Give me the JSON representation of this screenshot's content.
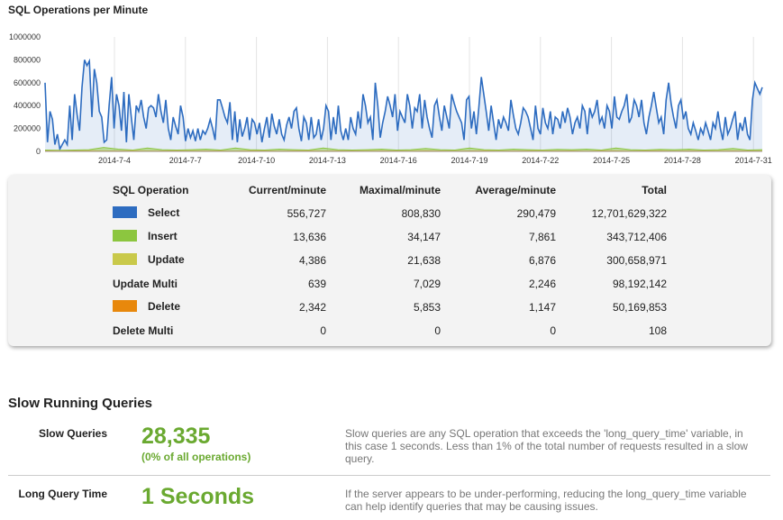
{
  "chart_section": {
    "title": "SQL Operations per Minute"
  },
  "chart_data": {
    "type": "area",
    "title": "SQL Operations per Minute",
    "xlabel": "",
    "ylabel": "",
    "ylim": [
      0,
      1000000
    ],
    "y_ticks": [
      "0",
      "200000",
      "400000",
      "600000",
      "800000",
      "1000000"
    ],
    "x_tick_labels": [
      "2014-7-4",
      "2014-7-7",
      "2014-7-10",
      "2014-7-13",
      "2014-7-16",
      "2014-7-19",
      "2014-7-22",
      "2014-7-25",
      "2014-7-28",
      "2014-7-31"
    ],
    "grid": "vertical",
    "series": [
      {
        "name": "Select",
        "color": "#2d6cc0",
        "values": [
          600000,
          80000,
          350000,
          280000,
          60000,
          150000,
          20000,
          60000,
          100000,
          60000,
          400000,
          100000,
          500000,
          320000,
          180000,
          560000,
          800000,
          750000,
          790000,
          300000,
          720000,
          600000,
          350000,
          300000,
          80000,
          100000,
          400000,
          650000,
          200000,
          500000,
          400000,
          180000,
          520000,
          80000,
          500000,
          300000,
          100000,
          400000,
          350000,
          450000,
          300000,
          200000,
          380000,
          400000,
          380000,
          300000,
          500000,
          350000,
          250000,
          450000,
          200000,
          100000,
          300000,
          220000,
          150000,
          400000,
          300000,
          90000,
          200000,
          120000,
          180000,
          90000,
          200000,
          100000,
          180000,
          150000,
          200000,
          280000,
          200000,
          100000,
          450000,
          450000,
          380000,
          300000,
          250000,
          430000,
          100000,
          350000,
          80000,
          280000,
          130000,
          200000,
          300000,
          100000,
          280000,
          250000,
          150000,
          250000,
          80000,
          200000,
          300000,
          120000,
          330000,
          220000,
          150000,
          280000,
          150000,
          100000,
          230000,
          300000,
          200000,
          350000,
          380000,
          200000,
          90000,
          300000,
          250000,
          100000,
          300000,
          120000,
          150000,
          280000,
          100000,
          200000,
          400000,
          350000,
          100000,
          300000,
          150000,
          400000,
          180000,
          100000,
          200000,
          100000,
          300000,
          200000,
          150000,
          350000,
          200000,
          500000,
          400000,
          250000,
          300000,
          100000,
          600000,
          400000,
          120000,
          250000,
          350000,
          480000,
          400000,
          300000,
          500000,
          180000,
          350000,
          300000,
          250000,
          500000,
          400000,
          200000,
          380000,
          350000,
          500000,
          200000,
          450000,
          300000,
          200000,
          120000,
          400000,
          450000,
          300000,
          180000,
          400000,
          300000,
          200000,
          500000,
          420000,
          350000,
          300000,
          250000,
          100000,
          450000,
          480000,
          200000,
          350000,
          150000,
          380000,
          650000,
          500000,
          350000,
          180000,
          400000,
          250000,
          100000,
          280000,
          200000,
          300000,
          250000,
          180000,
          450000,
          320000,
          200000,
          150000,
          250000,
          380000,
          350000,
          300000,
          200000,
          100000,
          400000,
          200000,
          150000,
          380000,
          250000,
          200000,
          350000,
          150000,
          300000,
          280000,
          200000,
          350000,
          250000,
          380000,
          300000,
          150000,
          250000,
          300000,
          200000,
          400000,
          350000,
          150000,
          380000,
          300000,
          350000,
          450000,
          250000,
          300000,
          200000,
          400000,
          350000,
          200000,
          480000,
          300000,
          280000,
          350000,
          400000,
          500000,
          250000,
          300000,
          450000,
          400000,
          300000,
          450000,
          250000,
          150000,
          300000,
          400000,
          520000,
          380000,
          250000,
          300000,
          150000,
          450000,
          600000,
          420000,
          300000,
          200000,
          400000,
          450000,
          280000,
          350000,
          200000,
          150000,
          250000,
          180000,
          100000,
          200000,
          150000,
          250000,
          180000,
          100000,
          250000,
          200000,
          350000,
          200000,
          100000,
          300000,
          150000,
          200000,
          280000,
          350000,
          100000,
          250000,
          180000,
          300000,
          150000,
          100000,
          450000,
          600000,
          550000,
          500000,
          560000
        ]
      },
      {
        "name": "Insert",
        "color": "#8cc63f",
        "values": [
          12000,
          10000,
          12000,
          15000,
          35000,
          20000,
          12000,
          30000,
          15000,
          12000,
          15000,
          20000,
          12000,
          30000,
          15000,
          12000,
          20000,
          15000,
          12000,
          30000,
          15000,
          12000,
          15000,
          20000,
          12000,
          15000,
          25000,
          15000,
          12000,
          30000,
          15000,
          12000,
          20000,
          15000,
          12000,
          18000,
          15000,
          20000,
          12000,
          30000,
          15000,
          12000,
          18000,
          15000,
          20000,
          12000,
          15000,
          25000,
          12000,
          15000
        ]
      },
      {
        "name": "Update",
        "color": "#c9c94a",
        "values": [
          4000,
          5000,
          4000,
          6000,
          5000,
          4000,
          6000,
          5000,
          4000,
          5000,
          6000,
          4000,
          5000,
          4000,
          6000,
          5000,
          4000,
          5000,
          6000,
          4000,
          5000,
          4000,
          6000,
          5000,
          4000,
          5000,
          6000,
          4000,
          5000,
          4000,
          6000,
          5000,
          4000,
          5000,
          6000,
          4000,
          5000,
          4000,
          6000,
          5000,
          4000,
          5000,
          6000,
          4000,
          5000,
          4000,
          6000,
          5000,
          4000,
          5000
        ]
      },
      {
        "name": "Delete",
        "color": "#e8880c",
        "values": [
          2000,
          1000,
          2000,
          1500,
          1000,
          2000,
          1500,
          1000,
          2000,
          1500,
          1000,
          2000,
          1500,
          1000,
          2000,
          1500,
          1000,
          2000,
          1500,
          1000,
          2000,
          1500,
          1000,
          2000,
          1500,
          1000,
          2000,
          1500,
          1000,
          2000,
          1500,
          1000,
          2000,
          1500,
          1000,
          2000,
          1500,
          1000,
          2000,
          1500,
          1000,
          2000,
          1500,
          1000,
          2000,
          1500,
          1000,
          2000,
          1500,
          1000
        ]
      }
    ]
  },
  "ops_table": {
    "headers": {
      "name": "SQL Operation",
      "current": "Current/minute",
      "maximal": "Maximal/minute",
      "average": "Average/minute",
      "total": "Total"
    },
    "rows": [
      {
        "name": "Select",
        "color": "#2d6cc0",
        "current": "556,727",
        "maximal": "808,830",
        "average": "290,479",
        "total": "12,701,629,322"
      },
      {
        "name": "Insert",
        "color": "#8cc63f",
        "current": "13,636",
        "maximal": "34,147",
        "average": "7,861",
        "total": "343,712,406"
      },
      {
        "name": "Update",
        "color": "#c9c94a",
        "current": "4,386",
        "maximal": "21,638",
        "average": "6,876",
        "total": "300,658,971"
      },
      {
        "name": "Update Multi",
        "color": "",
        "current": "639",
        "maximal": "7,029",
        "average": "2,246",
        "total": "98,192,142"
      },
      {
        "name": "Delete",
        "color": "#e8880c",
        "current": "2,342",
        "maximal": "5,853",
        "average": "1,147",
        "total": "50,169,853"
      },
      {
        "name": "Delete Multi",
        "color": "",
        "current": "0",
        "maximal": "0",
        "average": "0",
        "total": "108"
      }
    ]
  },
  "slow_section": {
    "title": "Slow Running Queries",
    "slow_queries": {
      "label": "Slow Queries",
      "value": "28,335",
      "sub": "(0% of all operations)",
      "description": "Slow queries are any SQL operation that exceeds the 'long_query_time' variable, in this case 1 seconds. Less than 1% of the total number of requests resulted in a slow query."
    },
    "long_query_time": {
      "label": "Long Query Time",
      "value": "1 Seconds",
      "description": "If the server appears to be under-performing, reducing the long_query_time variable can help identify queries that may be causing issues."
    }
  }
}
